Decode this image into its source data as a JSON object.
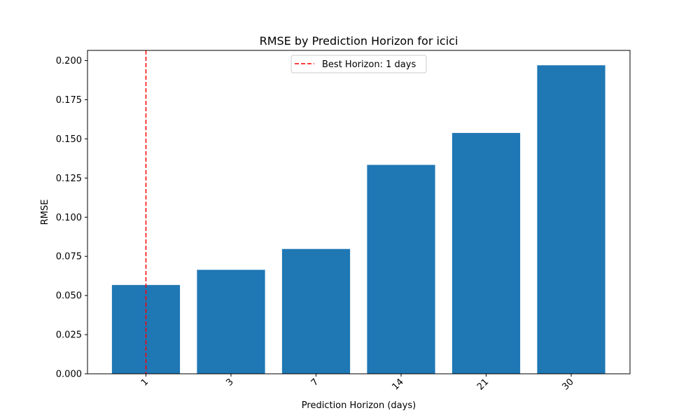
{
  "chart_data": {
    "type": "bar",
    "title": "RMSE by Prediction Horizon for icici",
    "xlabel": "Prediction Horizon (days)",
    "ylabel": "RMSE",
    "categories": [
      "1",
      "3",
      "7",
      "14",
      "21",
      "30"
    ],
    "values": [
      0.0567,
      0.0664,
      0.0797,
      0.1334,
      0.1538,
      0.197
    ],
    "ylim": [
      0,
      0.2065
    ],
    "yticks": [
      "0.000",
      "0.025",
      "0.050",
      "0.075",
      "0.100",
      "0.125",
      "0.150",
      "0.175",
      "0.200"
    ],
    "bar_color": "#1f77b4",
    "best_line": {
      "category": "1",
      "color": "#ff0000",
      "label": "Best Horizon: 1 days"
    },
    "legend_placement": "upper center",
    "grid": false
  }
}
